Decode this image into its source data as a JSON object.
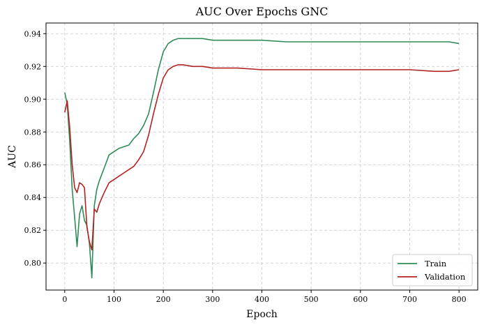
{
  "chart_data": {
    "type": "line",
    "title": "AUC Over Epochs GNC",
    "xlabel": "Epoch",
    "ylabel": "AUC",
    "xlim": [
      -38,
      838
    ],
    "ylim": [
      0.7835,
      0.9465
    ],
    "xticks": [
      0,
      100,
      200,
      300,
      400,
      500,
      600,
      700,
      800
    ],
    "yticks": [
      0.8,
      0.82,
      0.84,
      0.86,
      0.88,
      0.9,
      0.92,
      0.94
    ],
    "xtick_labels": [
      "0",
      "100",
      "200",
      "300",
      "400",
      "500",
      "600",
      "700",
      "800"
    ],
    "ytick_labels": [
      "0.80",
      "0.82",
      "0.84",
      "0.86",
      "0.88",
      "0.90",
      "0.92",
      "0.94"
    ],
    "grid": true,
    "legend_position": "bottom-right",
    "series": [
      {
        "name": "Train",
        "color": "#2e8b57",
        "x": [
          0,
          5,
          10,
          15,
          20,
          25,
          30,
          35,
          40,
          45,
          50,
          55,
          60,
          65,
          70,
          80,
          90,
          100,
          110,
          120,
          130,
          140,
          150,
          160,
          170,
          180,
          190,
          200,
          210,
          220,
          230,
          240,
          260,
          280,
          300,
          350,
          400,
          450,
          500,
          550,
          600,
          650,
          700,
          750,
          780,
          800
        ],
        "y": [
          0.904,
          0.897,
          0.875,
          0.845,
          0.828,
          0.81,
          0.83,
          0.835,
          0.826,
          0.823,
          0.812,
          0.791,
          0.835,
          0.845,
          0.85,
          0.858,
          0.866,
          0.868,
          0.87,
          0.871,
          0.872,
          0.876,
          0.879,
          0.884,
          0.891,
          0.904,
          0.918,
          0.929,
          0.934,
          0.936,
          0.937,
          0.937,
          0.937,
          0.937,
          0.936,
          0.936,
          0.936,
          0.935,
          0.935,
          0.935,
          0.935,
          0.935,
          0.935,
          0.935,
          0.935,
          0.934
        ]
      },
      {
        "name": "Validation",
        "color": "#b22222",
        "x": [
          0,
          5,
          10,
          15,
          20,
          25,
          30,
          35,
          40,
          45,
          50,
          55,
          60,
          65,
          70,
          80,
          90,
          100,
          110,
          120,
          130,
          140,
          150,
          160,
          170,
          180,
          190,
          200,
          210,
          220,
          230,
          240,
          260,
          280,
          300,
          350,
          400,
          450,
          500,
          550,
          600,
          650,
          700,
          750,
          780,
          800
        ],
        "y": [
          0.892,
          0.899,
          0.883,
          0.86,
          0.846,
          0.843,
          0.849,
          0.848,
          0.846,
          0.822,
          0.813,
          0.808,
          0.833,
          0.831,
          0.836,
          0.843,
          0.849,
          0.851,
          0.853,
          0.855,
          0.857,
          0.859,
          0.863,
          0.868,
          0.878,
          0.891,
          0.903,
          0.913,
          0.918,
          0.92,
          0.921,
          0.921,
          0.92,
          0.92,
          0.919,
          0.919,
          0.918,
          0.918,
          0.918,
          0.918,
          0.918,
          0.918,
          0.918,
          0.917,
          0.917,
          0.918
        ]
      }
    ]
  }
}
